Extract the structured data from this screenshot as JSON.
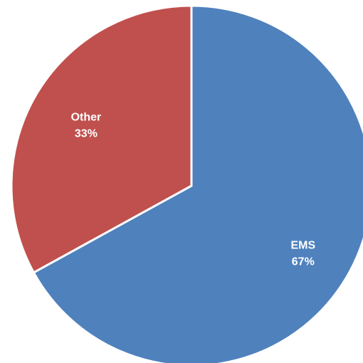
{
  "chart_data": {
    "type": "pie",
    "title": "",
    "slices": [
      {
        "label": "EMS",
        "value": 67,
        "percent_label": "67%",
        "color": "#4F81BD"
      },
      {
        "label": "Other",
        "value": 33,
        "percent_label": "33%",
        "color": "#C0504D"
      }
    ],
    "start": "12 o'clock",
    "direction": "clockwise",
    "legend": "none"
  }
}
